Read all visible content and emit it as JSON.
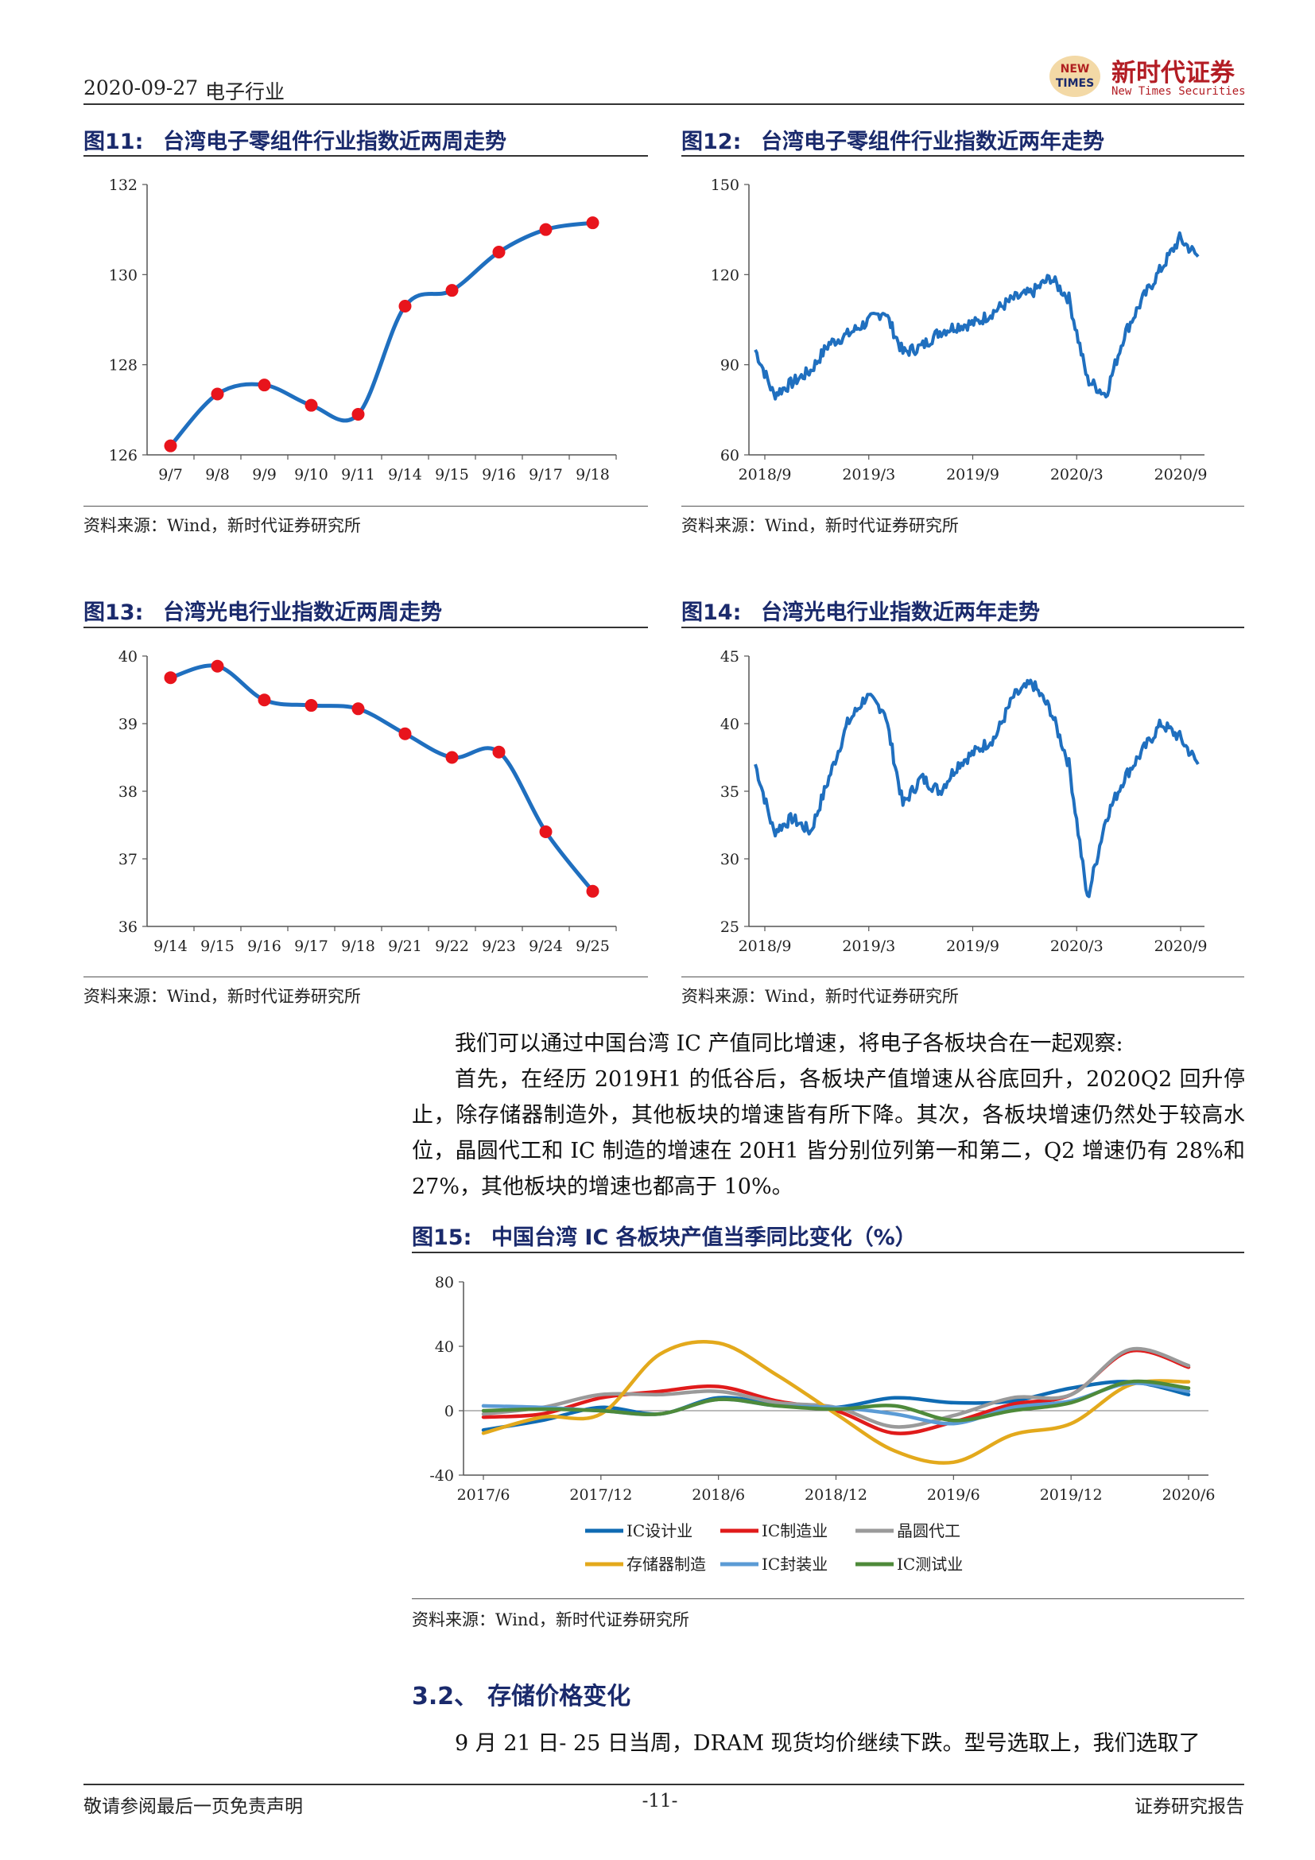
{
  "header": {
    "date": "2020-09-27",
    "industry": "电子行业",
    "logo_mark_line1": "NEW",
    "logo_mark_line2": "TIMES",
    "company_cn": "新时代证券",
    "company_en": "New Times Securities"
  },
  "figures": {
    "fig11": {
      "label": "图11:",
      "title": "台湾电子零组件行业指数近两周走势",
      "source": "资料来源：Wind，新时代证券研究所"
    },
    "fig12": {
      "label": "图12:",
      "title": "台湾电子零组件行业指数近两年走势",
      "source": "资料来源：Wind，新时代证券研究所"
    },
    "fig13": {
      "label": "图13:",
      "title": "台湾光电行业指数近两周走势",
      "source": "资料来源：Wind，新时代证券研究所"
    },
    "fig14": {
      "label": "图14:",
      "title": "台湾光电行业指数近两年走势",
      "source": "资料来源：Wind，新时代证券研究所"
    },
    "fig15": {
      "label": "图15:",
      "title": "中国台湾 IC 各板块产值当季同比变化（%）",
      "source": "资料来源：Wind，新时代证券研究所"
    }
  },
  "body": {
    "para1": "我们可以通过中国台湾 IC 产值同比增速，将电子各板块合在一起观察:",
    "para2": "首先，在经历 2019H1 的低谷后，各板块产值增速从谷底回升，2020Q2 回升停止，除存储器制造外，其他板块的增速皆有所下降。其次，各板块增速仍然处于较高水位，晶圆代工和 IC 制造的增速在 20H1 皆分别位列第一和第二，Q2 增速仍有 28%和 27%，其他板块的增速也都高于 10%。",
    "section_num": "3.2、",
    "section_title": "存储价格变化",
    "para3": "9 月 21 日- 25 日当周，DRAM 现货均价继续下跌。型号选取上，我们选取了"
  },
  "footer": {
    "left": "敬请参阅最后一页免责声明",
    "page": "-11-",
    "right": "证券研究报告"
  },
  "colors": {
    "line_blue": "#1f6fbf",
    "marker_red": "#e8141c",
    "title_navy": "#1a2a6c",
    "ic_design": "#0f6bb3",
    "ic_mfg": "#e01b1b",
    "foundry": "#9a9a9a",
    "memory": "#e3a91c",
    "packaging": "#5b9bd5",
    "testing": "#4e8a3a"
  },
  "chart_data": [
    {
      "id": "fig11",
      "type": "line",
      "categories": [
        "9/7",
        "9/8",
        "9/9",
        "9/10",
        "9/11",
        "9/14",
        "9/15",
        "9/16",
        "9/17",
        "9/18"
      ],
      "values": [
        126.2,
        127.35,
        127.55,
        127.1,
        126.9,
        129.3,
        129.65,
        130.5,
        131.0,
        131.15
      ],
      "yticks": [
        "126",
        "128",
        "130",
        "132"
      ],
      "ylim": [
        126,
        132
      ],
      "markers": true
    },
    {
      "id": "fig12",
      "type": "line",
      "xticks": [
        "2018/9",
        "2019/3",
        "2019/9",
        "2020/3",
        "2020/9"
      ],
      "yticks": [
        "60",
        "90",
        "120",
        "150"
      ],
      "ylim": [
        60,
        150
      ],
      "x": [
        0,
        1,
        2,
        3,
        4,
        5,
        6,
        7,
        8,
        9,
        10,
        11,
        12,
        13,
        14,
        15,
        16,
        17,
        18,
        19,
        20,
        21,
        22,
        23,
        24
      ],
      "values": [
        95,
        80,
        84,
        88,
        97,
        100,
        104,
        108,
        94,
        96,
        101,
        103,
        104,
        108,
        112,
        114,
        119,
        112,
        85,
        80,
        100,
        112,
        122,
        132,
        126
      ]
    },
    {
      "id": "fig13",
      "type": "line",
      "categories": [
        "9/14",
        "9/15",
        "9/16",
        "9/17",
        "9/18",
        "9/21",
        "9/22",
        "9/23",
        "9/24",
        "9/25"
      ],
      "values": [
        39.68,
        39.85,
        39.35,
        39.27,
        39.22,
        38.85,
        38.5,
        38.58,
        37.4,
        36.52
      ],
      "yticks": [
        "36",
        "37",
        "38",
        "39",
        "40"
      ],
      "ylim": [
        36,
        40
      ],
      "markers": true
    },
    {
      "id": "fig14",
      "type": "line",
      "xticks": [
        "2018/9",
        "2019/3",
        "2019/9",
        "2020/3",
        "2020/9"
      ],
      "yticks": [
        "25",
        "30",
        "35",
        "40",
        "45"
      ],
      "ylim": [
        25,
        45
      ],
      "x": [
        0,
        1,
        2,
        3,
        4,
        5,
        6,
        7,
        8,
        9,
        10,
        11,
        12,
        13,
        14,
        15,
        16,
        17,
        18,
        19,
        20,
        21,
        22,
        23,
        24
      ],
      "values": [
        37,
        32,
        33,
        32,
        36,
        40,
        42,
        41,
        34,
        36,
        35,
        37,
        38,
        39,
        42,
        43,
        41,
        37,
        27,
        33,
        36,
        38,
        40,
        39,
        37
      ]
    },
    {
      "id": "fig15",
      "type": "line",
      "categories": [
        "2017/6",
        "2017/9",
        "2017/12",
        "2018/3",
        "2018/6",
        "2018/9",
        "2018/12",
        "2019/3",
        "2019/6",
        "2019/9",
        "2019/12",
        "2020/3",
        "2020/6"
      ],
      "xticks": [
        "2017/6",
        "2017/12",
        "2018/6",
        "2018/12",
        "2019/6",
        "2019/12",
        "2020/6"
      ],
      "yticks": [
        "-40",
        "0",
        "40",
        "80"
      ],
      "ylim": [
        -40,
        80
      ],
      "legend_position": "bottom",
      "series": [
        {
          "name": "IC设计业",
          "values": [
            -12,
            -6,
            2,
            -2,
            8,
            4,
            2,
            8,
            5,
            6,
            14,
            18,
            10
          ]
        },
        {
          "name": "IC制造业",
          "values": [
            -4,
            -2,
            8,
            12,
            15,
            6,
            0,
            -14,
            -7,
            4,
            10,
            37,
            27
          ]
        },
        {
          "name": "晶圆代工",
          "values": [
            -2,
            2,
            10,
            10,
            12,
            5,
            2,
            -10,
            -3,
            8,
            10,
            38,
            28
          ]
        },
        {
          "name": "存储器制造",
          "values": [
            -14,
            -4,
            -2,
            35,
            42,
            22,
            -2,
            -25,
            -32,
            -15,
            -8,
            16,
            18
          ]
        },
        {
          "name": "IC封装业",
          "values": [
            3,
            2,
            0,
            -2,
            7,
            3,
            2,
            -2,
            -8,
            2,
            6,
            17,
            12
          ]
        },
        {
          "name": "IC测试业",
          "values": [
            0,
            1,
            0,
            -2,
            7,
            3,
            1,
            3,
            -6,
            0,
            5,
            18,
            14
          ]
        }
      ]
    }
  ]
}
